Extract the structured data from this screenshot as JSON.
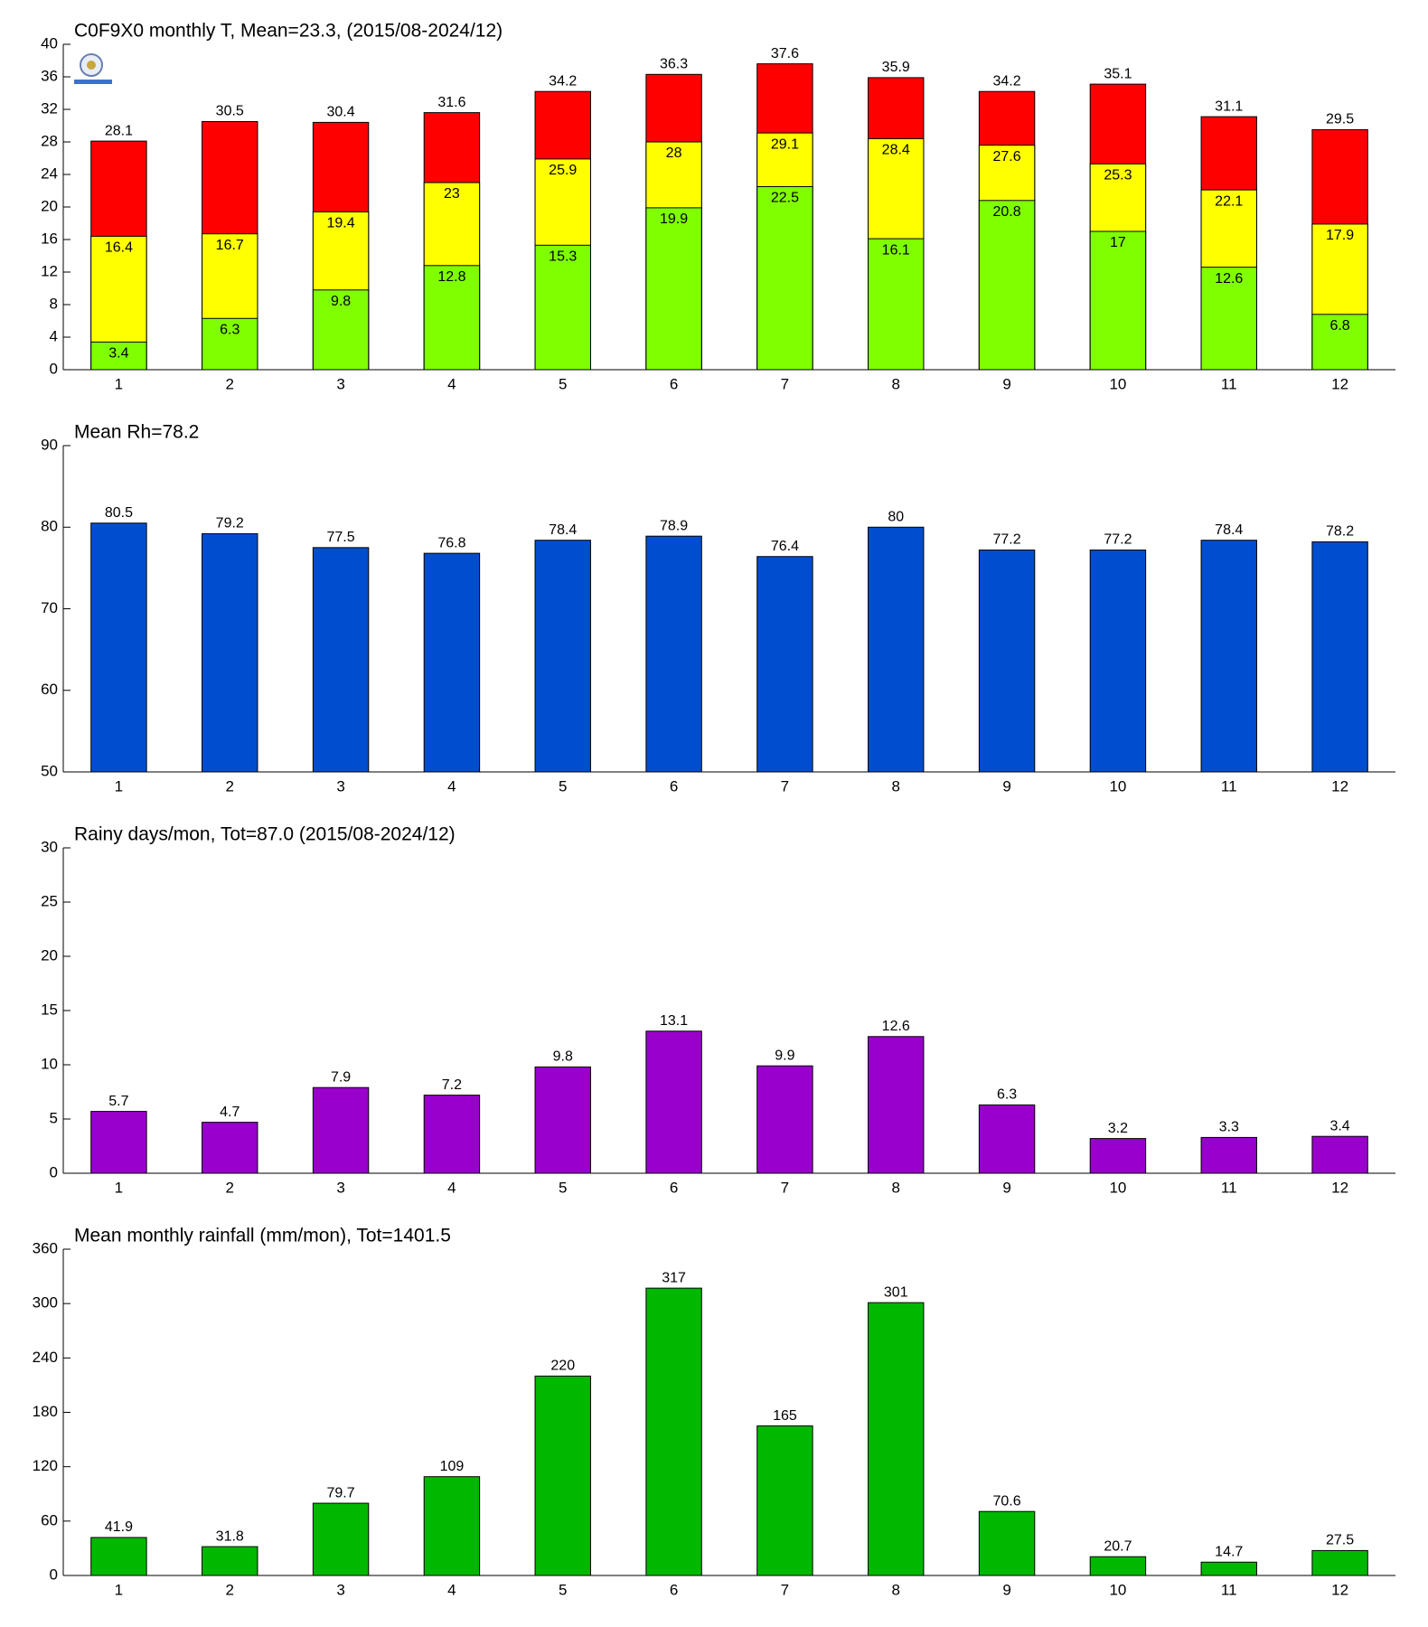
{
  "chart_data": [
    {
      "type": "bar",
      "title": "C0F9X0 monthly T, Mean=23.3, (2015/08-2024/12)",
      "categories": [
        "1",
        "2",
        "3",
        "4",
        "5",
        "6",
        "7",
        "8",
        "9",
        "10",
        "11",
        "12"
      ],
      "series": [
        {
          "color": "#ff0000",
          "values": [
            28.1,
            30.5,
            30.4,
            31.6,
            34.2,
            36.3,
            37.6,
            35.9,
            34.2,
            35.1,
            31.1,
            29.5
          ]
        },
        {
          "color": "#ffff00",
          "values": [
            16.4,
            16.7,
            19.4,
            23,
            25.9,
            28,
            29.1,
            28.4,
            27.6,
            25.3,
            22.1,
            17.9
          ]
        },
        {
          "color": "#80ff00",
          "values": [
            3.4,
            6.3,
            9.8,
            12.8,
            15.3,
            19.9,
            22.5,
            16.1,
            20.8,
            17,
            12.6,
            6.8
          ]
        }
      ],
      "ylim": [
        0,
        40
      ],
      "yticks": [
        0,
        4,
        8,
        12,
        16,
        20,
        24,
        28,
        32,
        36,
        40
      ]
    },
    {
      "type": "bar",
      "title": "Mean Rh=78.2",
      "categories": [
        "1",
        "2",
        "3",
        "4",
        "5",
        "6",
        "7",
        "8",
        "9",
        "10",
        "11",
        "12"
      ],
      "values": [
        80.5,
        79.2,
        77.5,
        76.8,
        78.4,
        78.9,
        76.4,
        80,
        77.2,
        77.2,
        78.4,
        78.2
      ],
      "color": "#004ecf",
      "ylim": [
        50,
        90
      ],
      "yticks": [
        50,
        60,
        70,
        80,
        90
      ]
    },
    {
      "type": "bar",
      "title": "Rainy days/mon, Tot=87.0 (2015/08-2024/12)",
      "categories": [
        "1",
        "2",
        "3",
        "4",
        "5",
        "6",
        "7",
        "8",
        "9",
        "10",
        "11",
        "12"
      ],
      "values": [
        5.7,
        4.7,
        7.9,
        7.2,
        9.8,
        13.1,
        9.9,
        12.6,
        6.3,
        3.2,
        3.3,
        3.4
      ],
      "color": "#9900cc",
      "ylim": [
        0,
        30
      ],
      "yticks": [
        0,
        5,
        10,
        15,
        20,
        25,
        30
      ]
    },
    {
      "type": "bar",
      "title": "Mean monthly rainfall (mm/mon), Tot=1401.5",
      "categories": [
        "1",
        "2",
        "3",
        "4",
        "5",
        "6",
        "7",
        "8",
        "9",
        "10",
        "11",
        "12"
      ],
      "values": [
        41.9,
        31.8,
        79.7,
        109,
        220,
        317,
        165,
        301,
        70.6,
        20.7,
        14.7,
        27.5
      ],
      "color": "#00b800",
      "ylim": [
        0,
        360
      ],
      "yticks": [
        0,
        60,
        120,
        180,
        240,
        300,
        360
      ]
    }
  ]
}
